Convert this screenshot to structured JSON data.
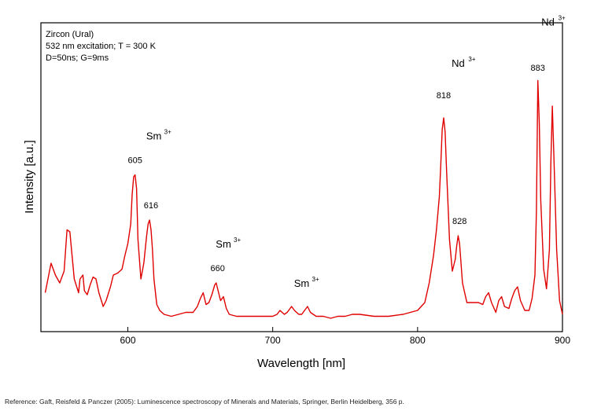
{
  "chart_data": {
    "type": "line",
    "title": "",
    "xlabel": "Wavelength [nm]",
    "ylabel": "Intensity [a.u.]",
    "xlim": [
      540,
      900
    ],
    "ylim": [
      0,
      1
    ],
    "xticks": [
      600,
      700,
      800,
      900
    ],
    "grid": false,
    "info_text": [
      "Zircon (Ural)",
      "532 nm excitation; T = 300 K",
      "D=50ns; G=9ms"
    ],
    "series": [
      {
        "color": "#e00000",
        "x": [
          543,
          547,
          550,
          553,
          556,
          558,
          560,
          563,
          566,
          567,
          569,
          570,
          572,
          574,
          576,
          578,
          580,
          583,
          585,
          588,
          590,
          593,
          596,
          598,
          600,
          602,
          603,
          604,
          605,
          606,
          607,
          609,
          611,
          613,
          614,
          615,
          616,
          617,
          618,
          620,
          622,
          625,
          630,
          635,
          640,
          645,
          648,
          650,
          652,
          654,
          656,
          658,
          660,
          661,
          663,
          664,
          666,
          668,
          670,
          675,
          680,
          690,
          700,
          703,
          705,
          708,
          710,
          713,
          715,
          718,
          720,
          722,
          724,
          726,
          728,
          730,
          735,
          740,
          745,
          750,
          755,
          760,
          770,
          780,
          790,
          800,
          805,
          808,
          811,
          813,
          815,
          816,
          817,
          818,
          819,
          820,
          822,
          824,
          826,
          827,
          828,
          829,
          831,
          834,
          838,
          842,
          845,
          847,
          849,
          851,
          854,
          856,
          858,
          860,
          863,
          865,
          867,
          869,
          871,
          874,
          877,
          879,
          881,
          882,
          883,
          884,
          885,
          887,
          889,
          891,
          892,
          893,
          894,
          896,
          898,
          900
        ],
        "y": [
          0.13,
          0.28,
          0.22,
          0.18,
          0.24,
          0.45,
          0.44,
          0.2,
          0.13,
          0.2,
          0.22,
          0.14,
          0.12,
          0.17,
          0.21,
          0.2,
          0.13,
          0.06,
          0.09,
          0.16,
          0.22,
          0.23,
          0.25,
          0.32,
          0.38,
          0.48,
          0.63,
          0.72,
          0.73,
          0.66,
          0.4,
          0.2,
          0.28,
          0.42,
          0.48,
          0.5,
          0.45,
          0.35,
          0.2,
          0.07,
          0.04,
          0.02,
          0.01,
          0.02,
          0.03,
          0.03,
          0.06,
          0.1,
          0.13,
          0.07,
          0.08,
          0.12,
          0.17,
          0.18,
          0.12,
          0.09,
          0.11,
          0.05,
          0.02,
          0.01,
          0.01,
          0.01,
          0.01,
          0.02,
          0.04,
          0.02,
          0.03,
          0.06,
          0.04,
          0.02,
          0.02,
          0.04,
          0.06,
          0.03,
          0.02,
          0.01,
          0.01,
          0.0,
          0.01,
          0.01,
          0.02,
          0.02,
          0.01,
          0.01,
          0.02,
          0.04,
          0.08,
          0.18,
          0.32,
          0.45,
          0.62,
          0.78,
          0.96,
          1.02,
          0.95,
          0.75,
          0.4,
          0.24,
          0.3,
          0.37,
          0.42,
          0.38,
          0.18,
          0.08,
          0.08,
          0.08,
          0.07,
          0.11,
          0.13,
          0.08,
          0.03,
          0.09,
          0.11,
          0.06,
          0.05,
          0.1,
          0.14,
          0.16,
          0.09,
          0.04,
          0.04,
          0.1,
          0.22,
          0.55,
          1.21,
          1.0,
          0.6,
          0.25,
          0.15,
          0.35,
          0.8,
          1.08,
          0.85,
          0.35,
          0.09,
          0.02
        ]
      }
    ],
    "annotations": [
      {
        "text": "605",
        "x": 605,
        "y": 0.79
      },
      {
        "text": "616",
        "x": 616,
        "y": 0.56
      },
      {
        "text": "660",
        "x": 662,
        "y": 0.24
      },
      {
        "text": "818",
        "x": 818,
        "y": 1.12
      },
      {
        "text": "828",
        "x": 829,
        "y": 0.48
      },
      {
        "text": "883",
        "x": 883,
        "y": 1.26
      }
    ],
    "ion_labels": [
      {
        "ion": "Sm",
        "charge": "3+",
        "x": 618,
        "y": 0.91
      },
      {
        "ion": "Sm",
        "charge": "3+",
        "x": 666,
        "y": 0.36
      },
      {
        "ion": "Sm",
        "charge": "3+",
        "x": 720,
        "y": 0.16
      },
      {
        "ion": "Nd",
        "charge": "3+",
        "x": 828,
        "y": 1.28
      },
      {
        "ion": "Nd",
        "charge": "3+",
        "x": 890,
        "y": 1.49
      }
    ]
  },
  "reference": "Reference: Gaft, Reisfeld & Panczer (2005): Luminescence spectroscopy of Minerals and Materials, Springer, Berlin Heidelberg, 356 p."
}
